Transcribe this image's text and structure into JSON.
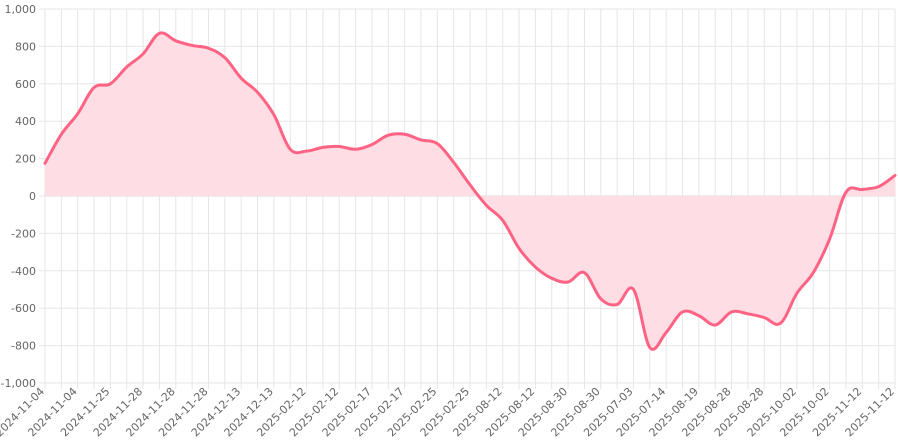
{
  "chart_data": {
    "type": "area",
    "title": "",
    "xlabel": "",
    "ylabel": "",
    "ylim": [
      -1000,
      1000
    ],
    "yticks": [
      1000,
      800,
      600,
      400,
      200,
      0,
      -200,
      -400,
      -600,
      -800,
      -1000
    ],
    "ytick_labels": [
      "1,000",
      "800",
      "600",
      "400",
      "200",
      "0",
      "-200",
      "-400",
      "-600",
      "-800",
      "-1,000"
    ],
    "grid": true,
    "legend": "none",
    "colors": {
      "line": "#ff6384",
      "fill": "#ffdde4",
      "grid": "#e5e5e5",
      "text": "#666666"
    },
    "categories": [
      "2024-11-04",
      "2024-11-04",
      "2024-11-04",
      "2024-11-25",
      "2024-11-25",
      "2024-11-28",
      "2024-11-28",
      "2024-11-28",
      "2024-11-28",
      "2024-11-28",
      "2024-11-28",
      "2024-11-28",
      "2024-12-13",
      "2024-12-13",
      "2024-12-13",
      "2025-02-12",
      "2025-02-12",
      "2025-02-12",
      "2025-02-12",
      "2025-02-17",
      "2025-02-17",
      "2025-02-17",
      "2025-02-17",
      "2025-02-25",
      "2025-02-25",
      "2025-02-25",
      "2025-02-25",
      "2025-08-12",
      "2025-08-12",
      "2025-08-12",
      "2025-08-12",
      "2025-08-30",
      "2025-08-30",
      "2025-08-30",
      "2025-08-30",
      "2025-07-03",
      "2025-07-03",
      "2025-07-14",
      "2025-07-14",
      "2025-08-19",
      "2025-08-19",
      "2025-08-28",
      "2025-08-28",
      "2025-08-28",
      "2025-08-28",
      "2025-10-02",
      "2025-10-02",
      "2025-10-02",
      "2025-10-02",
      "2025-11-12",
      "2025-11-12",
      "2025-11-12",
      "2025-11-12"
    ],
    "shown_label_every": 2,
    "series": [
      {
        "values": [
          175,
          330,
          440,
          580,
          600,
          690,
          760,
          870,
          830,
          805,
          790,
          740,
          630,
          555,
          435,
          250,
          240,
          260,
          265,
          250,
          275,
          325,
          330,
          300,
          280,
          180,
          60,
          -50,
          -130,
          -280,
          -380,
          -440,
          -460,
          -410,
          -550,
          -580,
          -500,
          -810,
          -730,
          -620,
          -640,
          -690,
          -620,
          -630,
          -650,
          -680,
          -520,
          -410,
          -230,
          20,
          35,
          50,
          110
        ]
      }
    ]
  }
}
